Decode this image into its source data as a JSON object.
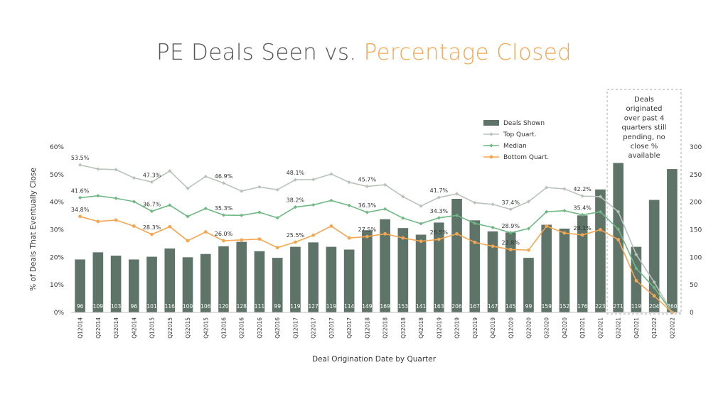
{
  "title": {
    "part1": "PE Deals Seen vs. ",
    "part2": "Percentage Closed"
  },
  "colors": {
    "bars": "#5F7468",
    "top": "#B9C3BC",
    "median": "#6FB884",
    "bottom": "#F5A650",
    "accent": "#F5A650"
  },
  "note": [
    "Deals",
    "originated",
    "over past 4",
    "quarters still",
    "pending, no",
    "close %",
    "available"
  ],
  "chart_data": {
    "type": "bar+line",
    "title": "PE Deals Seen vs. Percentage Closed",
    "xlabel": "Deal Origination Date by Quarter",
    "ylabel": "% of Deals That Eventually Close",
    "ylim": [
      0,
      60
    ],
    "y2lim": [
      0,
      300
    ],
    "yticks": [
      "0%",
      "10%",
      "20%",
      "30%",
      "40%",
      "50%",
      "60%"
    ],
    "y2ticks": [
      "0",
      "50",
      "100",
      "150",
      "200",
      "250",
      "300"
    ],
    "legend_position": "top-right",
    "categories": [
      "Q1 2014",
      "Q2 2014",
      "Q3 2014",
      "Q4 2014",
      "Q1 2015",
      "Q2 2015",
      "Q3 2015",
      "Q4 2015",
      "Q1 2016",
      "Q2 2016",
      "Q3 2016",
      "Q4 2016",
      "Q1 2017",
      "Q2 2017",
      "Q3 2017",
      "Q4 2017",
      "Q1 2018",
      "Q2 2018",
      "Q3 2018",
      "Q4 2018",
      "Q1 2019",
      "Q2 2019",
      "Q3 2019",
      "Q4 2019",
      "Q1 2020",
      "Q2 2020",
      "Q3 2020",
      "Q4 2020",
      "Q1 2021",
      "Q2 2021",
      "Q3 2021",
      "Q4 2021",
      "Q1 2022",
      "Q2 2022"
    ],
    "category_labels": [
      "Q12014",
      "Q22014",
      "Q32014",
      "Q42014",
      "Q12015",
      "Q22015",
      "Q32015",
      "Q42015",
      "Q12016",
      "Q22016",
      "Q32016",
      "Q42016",
      "Q12017",
      "Q22017",
      "Q32017",
      "Q42017",
      "Q12018",
      "Q22018",
      "Q32018",
      "Q42018",
      "Q12019",
      "Q22019",
      "Q32019",
      "Q42019",
      "Q12020",
      "Q22020",
      "Q32020",
      "Q42020",
      "Q12021",
      "Q22021",
      "Q32021",
      "Q42021",
      "Q12022",
      "Q22022"
    ],
    "bar_series": {
      "name": "Deals Shown",
      "axis": "right",
      "values": [
        96,
        109,
        103,
        96,
        101,
        116,
        100,
        106,
        120,
        128,
        111,
        99,
        119,
        127,
        119,
        114,
        149,
        169,
        153,
        141,
        163,
        206,
        167,
        147,
        145,
        99,
        159,
        152,
        176,
        223,
        271,
        119,
        204,
        260
      ],
      "labels": [
        "96",
        "109",
        "103",
        "96",
        "101",
        "116",
        "100",
        "106",
        "120",
        "128",
        "111",
        "99",
        "119",
        "127",
        "119",
        "114",
        "149",
        "169",
        "153",
        "141",
        "163",
        "206",
        "167",
        "147",
        "145",
        "99",
        "159",
        "152",
        "176",
        "223",
        "271",
        "119",
        "204",
        "260"
      ]
    },
    "line_series": [
      {
        "name": "Top Quart.",
        "axis": "left",
        "values": [
          53.5,
          52.0,
          51.8,
          48.8,
          47.3,
          51.3,
          45.0,
          49.3,
          46.9,
          44.0,
          45.5,
          44.5,
          48.1,
          48.2,
          50.2,
          47.2,
          45.7,
          46.3,
          42.0,
          38.6,
          41.7,
          43.0,
          39.8,
          39.2,
          37.4,
          40.2,
          45.3,
          44.8,
          42.2,
          42.0,
          36.5,
          21.0,
          11.0,
          0.0
        ],
        "labels": [
          "53.5%",
          "",
          "",
          "",
          "47.3%",
          "",
          "",
          "",
          "46.9%",
          "",
          "",
          "",
          "48.1%",
          "",
          "",
          "",
          "45.7%",
          "",
          "",
          "",
          "41.7%",
          "",
          "",
          "",
          "37.4%",
          "",
          "",
          "",
          "42.2%",
          "",
          "",
          "",
          "",
          ""
        ]
      },
      {
        "name": "Median",
        "axis": "left",
        "values": [
          41.6,
          42.3,
          41.4,
          40.2,
          36.7,
          38.9,
          34.8,
          37.7,
          35.3,
          35.2,
          36.3,
          34.3,
          38.2,
          39.0,
          40.6,
          38.8,
          36.3,
          37.5,
          34.2,
          32.2,
          34.3,
          35.2,
          32.3,
          30.8,
          28.9,
          30.4,
          36.5,
          36.9,
          35.4,
          36.5,
          30.2,
          16.0,
          9.0,
          0.0
        ],
        "labels": [
          "41.6%",
          "",
          "",
          "",
          "36.7%",
          "",
          "",
          "",
          "35.3%",
          "",
          "",
          "",
          "38.2%",
          "",
          "",
          "",
          "36.3%",
          "",
          "",
          "",
          "34.3%",
          "",
          "",
          "",
          "28.9%",
          "",
          "",
          "",
          "35.4%",
          "",
          "",
          "",
          "",
          ""
        ]
      },
      {
        "name": "Bottom Quart.",
        "axis": "left",
        "values": [
          34.8,
          33.0,
          33.5,
          31.3,
          28.3,
          31.1,
          26.0,
          29.2,
          26.0,
          26.3,
          26.6,
          23.5,
          25.5,
          28.0,
          31.3,
          27.0,
          27.5,
          28.5,
          27.0,
          25.8,
          26.5,
          28.5,
          25.4,
          24.0,
          22.8,
          22.6,
          31.3,
          28.8,
          28.1,
          30.0,
          26.4,
          11.5,
          6.0,
          0.0
        ],
        "labels": [
          "34.8%",
          "",
          "",
          "",
          "28.3%",
          "",
          "",
          "",
          "26.0%",
          "",
          "",
          "",
          "25.5%",
          "",
          "",
          "",
          "27.5%",
          "",
          "",
          "",
          "26.5%",
          "",
          "",
          "",
          "22.8%",
          "",
          "",
          "",
          "28.1%",
          "",
          "",
          "",
          "",
          ""
        ]
      }
    ],
    "annotation": "Deals originated over past 4 quarters still pending, no close % available"
  }
}
